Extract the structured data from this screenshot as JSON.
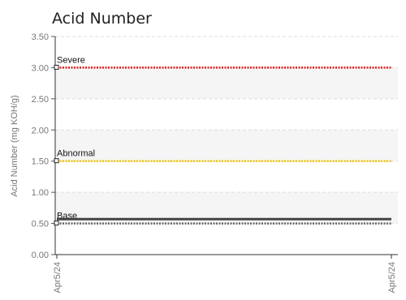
{
  "chart_data": {
    "type": "line",
    "title": "Acid Number",
    "ylabel": "Acid Number (mg KOH/g)",
    "xlabel": "",
    "ylim": [
      0,
      3.5
    ],
    "y_ticks": [
      "0.00",
      "0.50",
      "1.00",
      "1.50",
      "2.00",
      "2.50",
      "3.00",
      "3.50"
    ],
    "x_ticks": [
      "Apr5/24",
      "Apr5/24"
    ],
    "bands": [
      [
        0.5,
        1.0
      ],
      [
        1.5,
        2.0
      ],
      [
        2.5,
        3.0
      ]
    ],
    "series": [
      {
        "name": "Severe",
        "value": 3.0,
        "color": "#e31b1b",
        "style": "dotted"
      },
      {
        "name": "Abnormal",
        "value": 1.5,
        "color": "#f2c200",
        "style": "dotted"
      },
      {
        "name": "Base",
        "value": 0.5,
        "color": "#666666",
        "style": "dotted"
      },
      {
        "name": "",
        "value": 0.57,
        "color": "#444444",
        "style": "solid"
      }
    ],
    "grid": true
  }
}
